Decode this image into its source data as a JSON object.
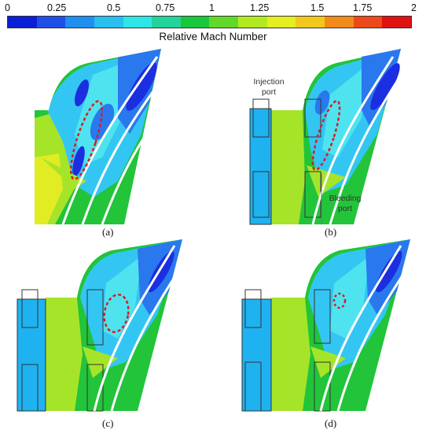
{
  "colorbar": {
    "title": "Relative Mach Number",
    "ticks": [
      "0",
      "0.25",
      "0.5",
      "0.75",
      "1",
      "1.25",
      "1.5",
      "1.75",
      "2"
    ],
    "colors": [
      "#0b1fd6",
      "#1f4fe6",
      "#1f8ff0",
      "#27bff0",
      "#2fe6e6",
      "#22d49c",
      "#18c83c",
      "#62d82a",
      "#b2ea22",
      "#e4ee20",
      "#f2c81c",
      "#f28a1a",
      "#ec4a18",
      "#e01212"
    ]
  },
  "panels": [
    {
      "label": "(a)"
    },
    {
      "label": "(b)",
      "injection_port_label_1": "Injection",
      "injection_port_label_2": "port",
      "bleeding_port_label_1": "Bleeding",
      "bleeding_port_label_2": "port"
    },
    {
      "label": "(c)"
    },
    {
      "label": "(d)"
    }
  ],
  "field_colors": {
    "deep_blue": "#1b2ee0",
    "blue": "#2a78ee",
    "cyan": "#34c6f2",
    "light_cyan": "#4fe3f0",
    "green": "#22c43a",
    "yellow_green": "#a6e42a",
    "yellow": "#e2ec22",
    "port_fill": "#1fb2f0",
    "marker": "#d81e1e"
  }
}
